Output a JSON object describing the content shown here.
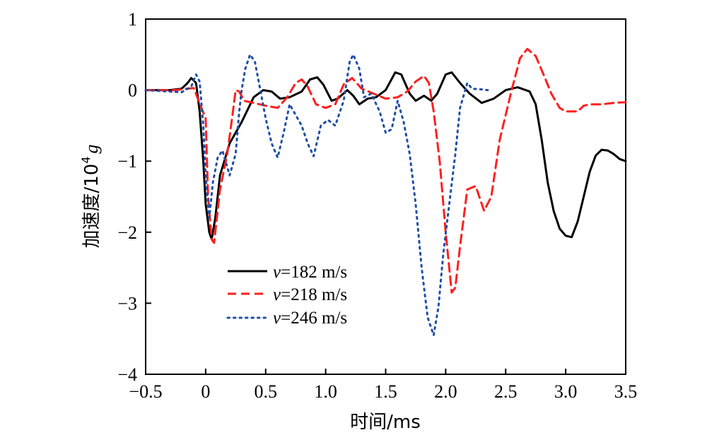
{
  "chart_data": {
    "type": "line",
    "xlabel": "时间/ms",
    "ylabel_prefix": "加速度/10",
    "ylabel_exp": "4",
    "ylabel_suffix": "g",
    "xlim": [
      -0.5,
      3.5
    ],
    "ylim": [
      -4,
      1
    ],
    "x_ticks": [
      -0.5,
      0.0,
      0.5,
      1.0,
      1.5,
      2.0,
      2.5,
      3.0,
      3.5
    ],
    "x_tick_labels": [
      "−0.5",
      "0",
      "0.5",
      "1.0",
      "1.5",
      "2.0",
      "2.5",
      "3.0",
      "3.5"
    ],
    "y_ticks": [
      1,
      0,
      -1,
      -2,
      -3,
      -4
    ],
    "y_tick_labels": [
      "1",
      "0",
      "−1",
      "−2",
      "−3",
      "−4"
    ],
    "grid": false,
    "legend_position": "lower-left",
    "series": [
      {
        "name_var": "v",
        "name_rest": "=182 m/s",
        "color": "#000000",
        "style": "solid",
        "points": [
          [
            -0.5,
            0
          ],
          [
            -0.3,
            0
          ],
          [
            -0.2,
            0.02
          ],
          [
            -0.15,
            0.1
          ],
          [
            -0.12,
            0.17
          ],
          [
            -0.08,
            0.1
          ],
          [
            -0.05,
            -0.3
          ],
          [
            -0.02,
            -1.0
          ],
          [
            0,
            -1.6
          ],
          [
            0.03,
            -2.0
          ],
          [
            0.05,
            -2.1
          ],
          [
            0.08,
            -1.8
          ],
          [
            0.12,
            -1.2
          ],
          [
            0.2,
            -0.75
          ],
          [
            0.3,
            -0.45
          ],
          [
            0.4,
            -0.1
          ],
          [
            0.48,
            0
          ],
          [
            0.55,
            -0.02
          ],
          [
            0.62,
            -0.12
          ],
          [
            0.7,
            -0.1
          ],
          [
            0.8,
            -0.02
          ],
          [
            0.87,
            0.15
          ],
          [
            0.93,
            0.18
          ],
          [
            0.98,
            0.08
          ],
          [
            1.05,
            -0.15
          ],
          [
            1.1,
            -0.12
          ],
          [
            1.18,
            0
          ],
          [
            1.23,
            -0.08
          ],
          [
            1.28,
            -0.2
          ],
          [
            1.35,
            -0.12
          ],
          [
            1.42,
            -0.1
          ],
          [
            1.5,
            0
          ],
          [
            1.58,
            0.25
          ],
          [
            1.63,
            0.22
          ],
          [
            1.7,
            -0.05
          ],
          [
            1.75,
            -0.15
          ],
          [
            1.82,
            -0.08
          ],
          [
            1.88,
            -0.15
          ],
          [
            1.93,
            -0.05
          ],
          [
            2.0,
            0.22
          ],
          [
            2.05,
            0.25
          ],
          [
            2.12,
            0.1
          ],
          [
            2.2,
            -0.05
          ],
          [
            2.3,
            -0.18
          ],
          [
            2.4,
            -0.12
          ],
          [
            2.5,
            0
          ],
          [
            2.6,
            0.04
          ],
          [
            2.7,
            -0.02
          ],
          [
            2.75,
            -0.2
          ],
          [
            2.8,
            -0.7
          ],
          [
            2.85,
            -1.3
          ],
          [
            2.9,
            -1.7
          ],
          [
            2.95,
            -1.95
          ],
          [
            3.0,
            -2.05
          ],
          [
            3.05,
            -2.07
          ],
          [
            3.1,
            -1.85
          ],
          [
            3.15,
            -1.5
          ],
          [
            3.2,
            -1.15
          ],
          [
            3.25,
            -0.92
          ],
          [
            3.3,
            -0.84
          ],
          [
            3.35,
            -0.85
          ],
          [
            3.4,
            -0.9
          ],
          [
            3.45,
            -0.97
          ],
          [
            3.5,
            -1.0
          ]
        ]
      },
      {
        "name_var": "v",
        "name_rest": "=218 m/s",
        "color": "#ff1f1f",
        "style": "dashed",
        "points": [
          [
            -0.5,
            0
          ],
          [
            -0.25,
            0
          ],
          [
            -0.1,
            0.03
          ],
          [
            0,
            -0.4
          ],
          [
            0.02,
            -1.5
          ],
          [
            0.05,
            -2.1
          ],
          [
            0.07,
            -2.15
          ],
          [
            0.12,
            -1.4
          ],
          [
            0.18,
            -0.9
          ],
          [
            0.22,
            -0.4
          ],
          [
            0.25,
            0
          ],
          [
            0.28,
            -0.02
          ],
          [
            0.32,
            -0.15
          ],
          [
            0.4,
            -0.18
          ],
          [
            0.5,
            -0.22
          ],
          [
            0.6,
            -0.25
          ],
          [
            0.68,
            -0.1
          ],
          [
            0.75,
            0.1
          ],
          [
            0.8,
            0.15
          ],
          [
            0.85,
            0.05
          ],
          [
            0.92,
            -0.2
          ],
          [
            1.0,
            -0.25
          ],
          [
            1.08,
            -0.2
          ],
          [
            1.15,
            0.08
          ],
          [
            1.22,
            0.17
          ],
          [
            1.3,
            0.02
          ],
          [
            1.4,
            -0.05
          ],
          [
            1.5,
            -0.12
          ],
          [
            1.6,
            -0.1
          ],
          [
            1.68,
            -0.02
          ],
          [
            1.75,
            0.12
          ],
          [
            1.82,
            0.2
          ],
          [
            1.86,
            0.1
          ],
          [
            1.9,
            -0.3
          ],
          [
            1.95,
            -1.0
          ],
          [
            2.0,
            -2.0
          ],
          [
            2.05,
            -2.85
          ],
          [
            2.08,
            -2.78
          ],
          [
            2.12,
            -2.2
          ],
          [
            2.18,
            -1.4
          ],
          [
            2.25,
            -1.35
          ],
          [
            2.32,
            -1.7
          ],
          [
            2.38,
            -1.5
          ],
          [
            2.45,
            -0.7
          ],
          [
            2.55,
            0
          ],
          [
            2.62,
            0.45
          ],
          [
            2.68,
            0.58
          ],
          [
            2.75,
            0.48
          ],
          [
            2.82,
            0.2
          ],
          [
            2.88,
            -0.05
          ],
          [
            2.95,
            -0.25
          ],
          [
            3.0,
            -0.3
          ],
          [
            3.1,
            -0.3
          ],
          [
            3.15,
            -0.22
          ],
          [
            3.2,
            -0.2
          ],
          [
            3.3,
            -0.2
          ],
          [
            3.4,
            -0.18
          ],
          [
            3.5,
            -0.17
          ]
        ]
      },
      {
        "name_var": "v",
        "name_rest": "=246 m/s",
        "color": "#1f4fa8",
        "style": "dotted",
        "points": [
          [
            -0.5,
            0
          ],
          [
            -0.3,
            -0.02
          ],
          [
            -0.2,
            -0.03
          ],
          [
            -0.12,
            0.05
          ],
          [
            -0.08,
            0.22
          ],
          [
            -0.05,
            0.12
          ],
          [
            -0.02,
            -0.5
          ],
          [
            0,
            -1.2
          ],
          [
            0.03,
            -1.8
          ],
          [
            0.06,
            -1.3
          ],
          [
            0.1,
            -0.95
          ],
          [
            0.14,
            -0.85
          ],
          [
            0.2,
            -1.2
          ],
          [
            0.25,
            -0.9
          ],
          [
            0.28,
            -0.3
          ],
          [
            0.3,
            0
          ],
          [
            0.33,
            0.3
          ],
          [
            0.37,
            0.5
          ],
          [
            0.41,
            0.4
          ],
          [
            0.45,
            0.05
          ],
          [
            0.5,
            -0.4
          ],
          [
            0.55,
            -0.75
          ],
          [
            0.6,
            -0.95
          ],
          [
            0.65,
            -0.6
          ],
          [
            0.7,
            -0.2
          ],
          [
            0.75,
            -0.35
          ],
          [
            0.8,
            -0.5
          ],
          [
            0.85,
            -0.75
          ],
          [
            0.9,
            -0.93
          ],
          [
            0.96,
            -0.5
          ],
          [
            1.02,
            -0.42
          ],
          [
            1.08,
            -0.5
          ],
          [
            1.15,
            -0.15
          ],
          [
            1.2,
            0.4
          ],
          [
            1.23,
            0.5
          ],
          [
            1.28,
            0.3
          ],
          [
            1.32,
            -0.1
          ],
          [
            1.38,
            -0.05
          ],
          [
            1.45,
            -0.3
          ],
          [
            1.5,
            -0.6
          ],
          [
            1.55,
            -0.55
          ],
          [
            1.6,
            -0.15
          ],
          [
            1.65,
            -0.45
          ],
          [
            1.7,
            -0.9
          ],
          [
            1.75,
            -1.6
          ],
          [
            1.8,
            -2.5
          ],
          [
            1.85,
            -3.2
          ],
          [
            1.9,
            -3.45
          ],
          [
            1.94,
            -3.05
          ],
          [
            1.98,
            -2.3
          ],
          [
            2.03,
            -1.6
          ],
          [
            2.08,
            -0.9
          ],
          [
            2.12,
            -0.25
          ],
          [
            2.18,
            0.1
          ],
          [
            2.22,
            0.02
          ],
          [
            2.3,
            0.01
          ],
          [
            2.35,
            0
          ]
        ]
      }
    ]
  }
}
